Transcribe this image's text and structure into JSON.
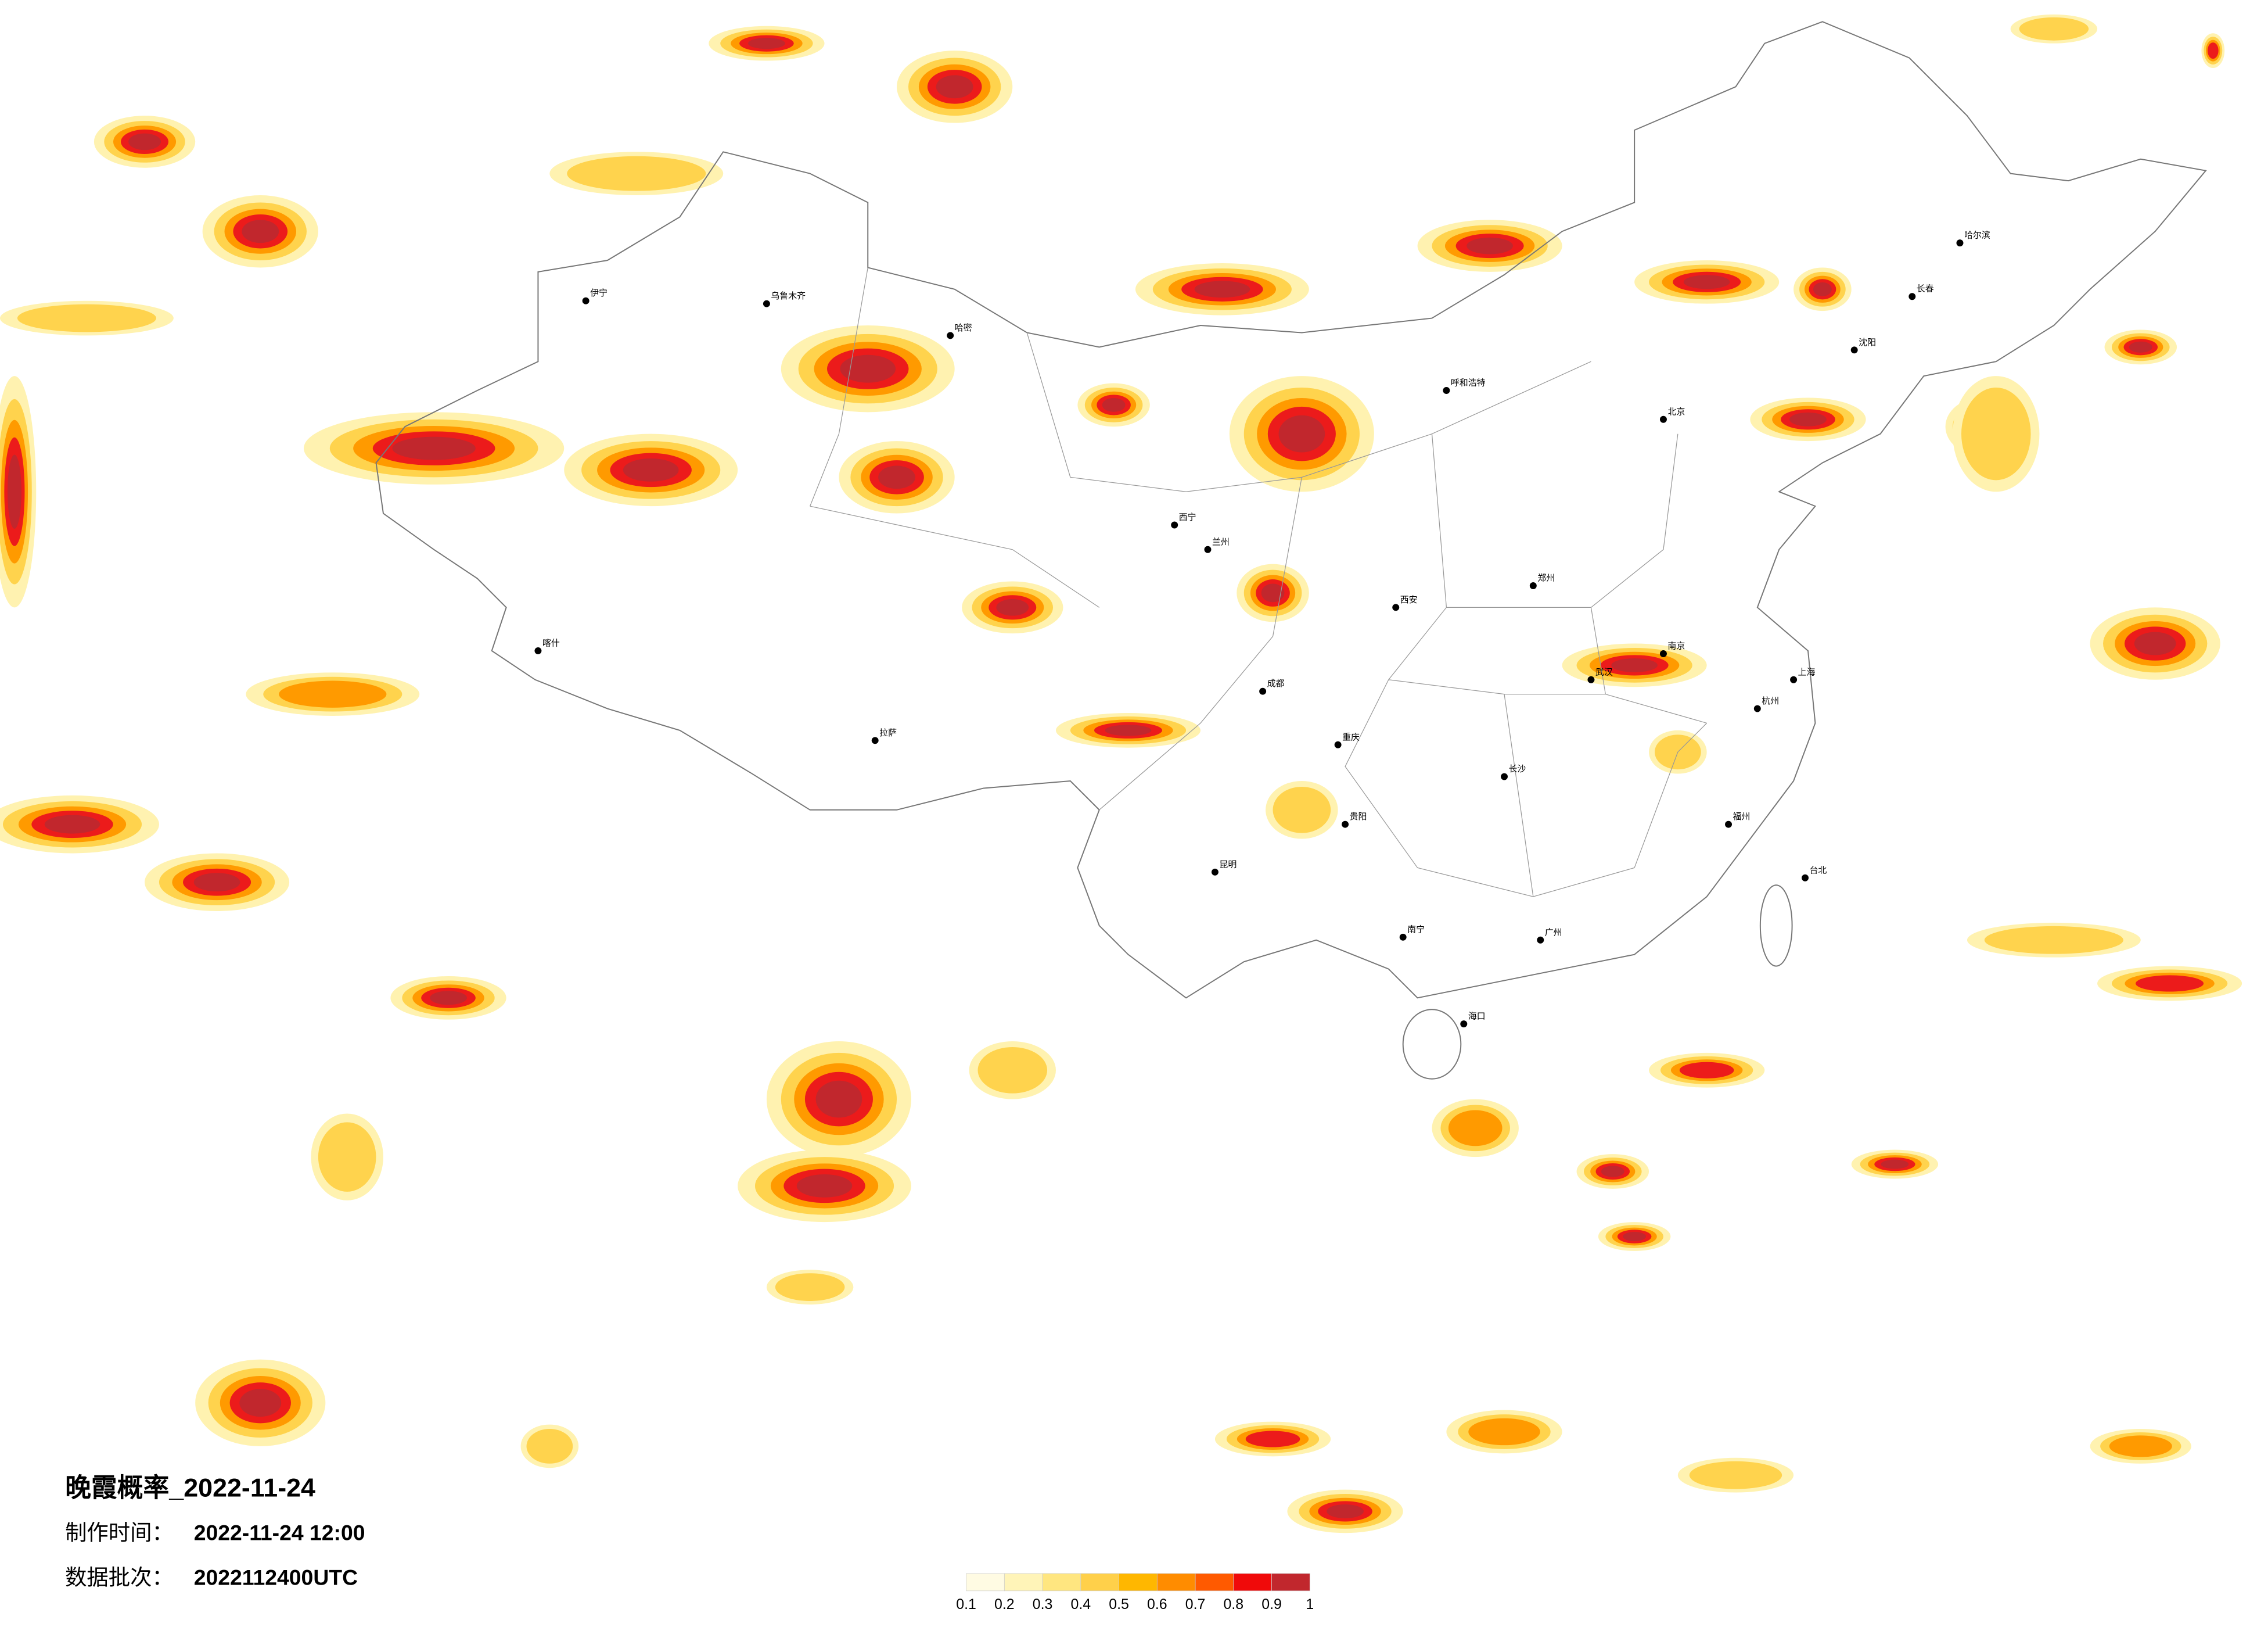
{
  "title": "晚霞概率_2022-11-24",
  "info": [
    {
      "label": "制作时间：",
      "value": "2022-11-24 12:00"
    },
    {
      "label": "数据批次：",
      "value": "2022112400UTC"
    }
  ],
  "legend": {
    "ticks": [
      0.1,
      0.2,
      0.3,
      0.4,
      0.5,
      0.6,
      0.7,
      0.8,
      0.9,
      1
    ],
    "colors": [
      "#fffbe3",
      "#fff4b8",
      "#ffe680",
      "#ffd04a",
      "#ffb700",
      "#ff8c00",
      "#ff5a00",
      "#f00a0a",
      "#c1272d"
    ]
  },
  "cities": [
    "乌鲁木齐",
    "哈密",
    "伊宁",
    "喀什",
    "拉萨",
    "西宁",
    "兰州",
    "呼和浩特",
    "北京",
    "哈尔滨",
    "长春",
    "沈阳",
    "西安",
    "郑州",
    "成都",
    "重庆",
    "昆明",
    "贵阳",
    "南宁",
    "广州",
    "长沙",
    "武汉",
    "南京",
    "上海",
    "杭州",
    "福州",
    "海口",
    "台北"
  ]
}
